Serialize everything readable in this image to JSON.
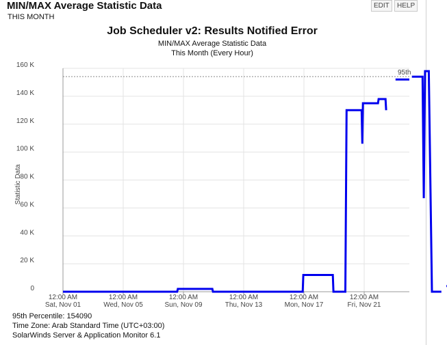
{
  "header": {
    "title": "MIN/MAX Average Statistic Data",
    "subtitle": "THIS MONTH",
    "edit_label": "EDIT",
    "help_label": "HELP"
  },
  "chart_data": {
    "type": "line",
    "title": "Job Scheduler v2: Results Notified Error",
    "subtitle": "MIN/MAX Average Statistic Data",
    "subtitle2": "This Month (Every Hour)",
    "ylabel": "Statistic Data",
    "xlabel": "",
    "ylim": [
      0,
      160000
    ],
    "yticks": [
      0,
      20000,
      40000,
      60000,
      80000,
      100000,
      120000,
      140000,
      160000
    ],
    "ytick_labels": [
      "0",
      "20 K",
      "40 K",
      "60 K",
      "80 K",
      "100 K",
      "120 K",
      "140 K",
      "160 K"
    ],
    "xlim": [
      "2025-11-01",
      "2025-11-25"
    ],
    "xticks": [
      "2025-11-01",
      "2025-11-05",
      "2025-11-09",
      "2025-11-13",
      "2025-11-17",
      "2025-11-21"
    ],
    "xtick_labels": [
      [
        "12:00 AM",
        "Sat, Nov 01"
      ],
      [
        "12:00 AM",
        "Wed, Nov 05"
      ],
      [
        "12:00 AM",
        "Sun, Nov 09"
      ],
      [
        "12:00 AM",
        "Thu, Nov 13"
      ],
      [
        "12:00 AM",
        "Mon, Nov 17"
      ],
      [
        "12:00 AM",
        "Fri, Nov 21"
      ]
    ],
    "grid": true,
    "series": [
      {
        "color": "#0000ee",
        "segments": [
          [
            [
              "2025-11-01T00:00",
              0
            ],
            [
              "2025-11-08T14:00",
              0
            ],
            [
              "2025-11-08T15:00",
              2000
            ],
            [
              "2025-11-10T22:00",
              2000
            ],
            [
              "2025-11-10T23:00",
              0
            ],
            [
              "2025-11-16T22:00",
              0
            ],
            [
              "2025-11-16T23:00",
              12000
            ],
            [
              "2025-11-18T22:00",
              12000
            ],
            [
              "2025-11-18T23:00",
              0
            ],
            [
              "2025-11-19T18:00",
              0
            ],
            [
              "2025-11-19T20:00",
              130000
            ],
            [
              "2025-11-20T20:00",
              130000
            ],
            [
              "2025-11-20T21:00",
              106000
            ],
            [
              "2025-11-20T22:00",
              135000
            ],
            [
              "2025-11-21T22:00",
              135000
            ],
            [
              "2025-11-21T23:00",
              138000
            ],
            [
              "2025-11-22T10:00",
              138000
            ],
            [
              "2025-11-22T11:00",
              130000
            ]
          ],
          [
            [
              "2025-11-23T02:00",
              152000
            ],
            [
              "2025-11-24T00:00",
              152000
            ]
          ],
          [
            [
              "2025-11-24T04:00",
              154000
            ],
            [
              "2025-11-24T21:00",
              154000
            ],
            [
              "2025-11-24T23:00",
              67000
            ],
            [
              "2025-11-25T01:00",
              158000
            ],
            [
              "2025-11-25T07:00",
              158000
            ],
            [
              "2025-11-25T12:00",
              0
            ],
            [
              "2025-11-26T03:00",
              0
            ]
          ],
          [
            [
              "2025-11-26T11:00",
              4000
            ],
            [
              "2025-11-27T00:00",
              4000
            ]
          ]
        ]
      }
    ],
    "percentile_95": 154090,
    "percentile_label": "95th"
  },
  "footer": {
    "percentile_text": "95th Percentile: 154090",
    "timezone_text": "Time Zone: Arab Standard Time (UTC+03:00)",
    "product_text": "SolarWinds Server & Application Monitor  6.1"
  }
}
